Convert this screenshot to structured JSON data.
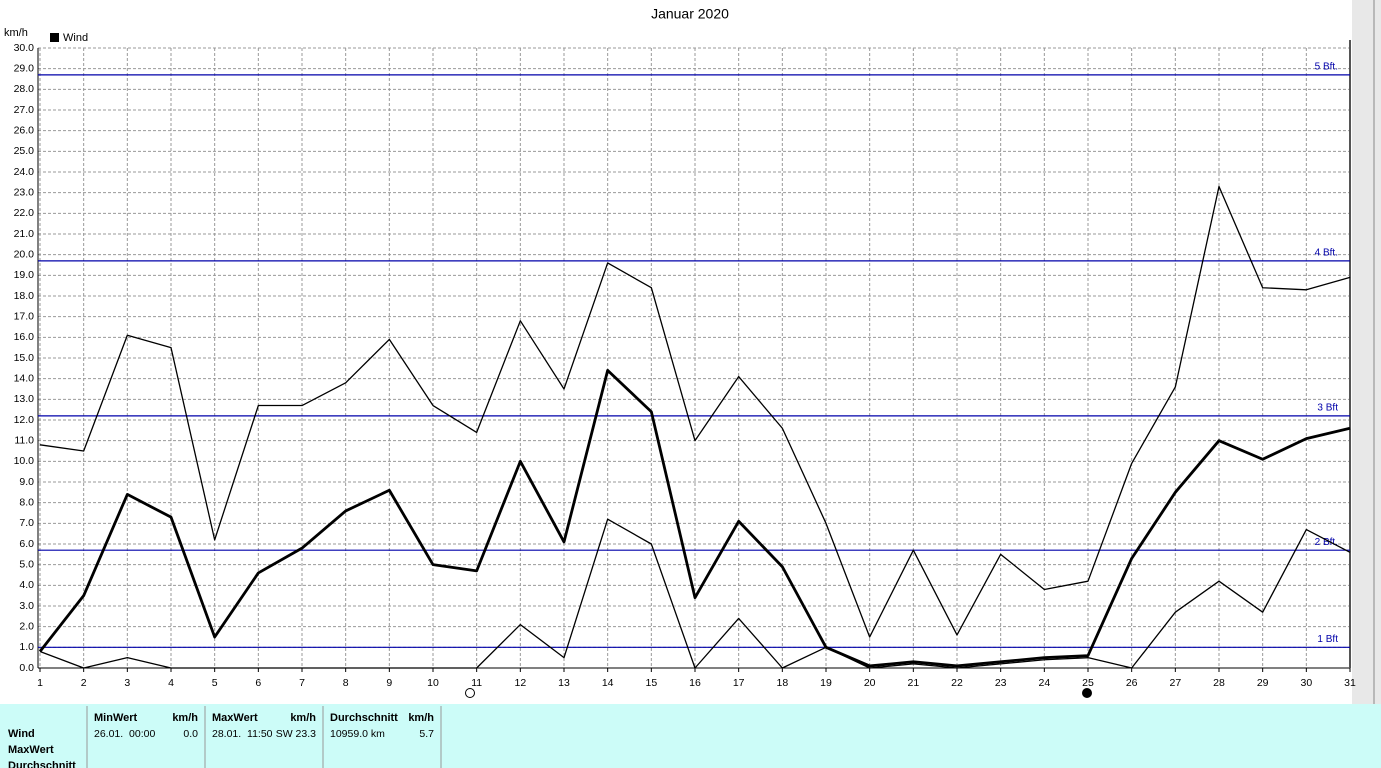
{
  "chart_data": {
    "type": "line",
    "title": "Januar 2020",
    "y_unit": "km/h",
    "legend": "Wind",
    "categories": [
      "1",
      "2",
      "3",
      "4",
      "5",
      "6",
      "7",
      "8",
      "9",
      "10",
      "11",
      "12",
      "13",
      "14",
      "15",
      "16",
      "17",
      "18",
      "19",
      "20",
      "21",
      "22",
      "23",
      "24",
      "25",
      "26",
      "27",
      "28",
      "29",
      "30",
      "31"
    ],
    "series": [
      {
        "color": "#000000",
        "width": 1.3,
        "values": [
          10.8,
          10.5,
          16.1,
          15.5,
          6.2,
          12.7,
          12.7,
          13.8,
          15.9,
          12.7,
          11.4,
          16.8,
          13.5,
          19.6,
          18.4,
          11.0,
          14.1,
          11.6,
          7.0,
          1.5,
          5.7,
          1.6,
          5.5,
          3.8,
          4.2,
          9.9,
          13.6,
          23.3,
          18.4,
          18.3,
          18.9
        ]
      },
      {
        "color": "#000000",
        "width": 2.8,
        "values": [
          0.8,
          3.5,
          8.4,
          7.3,
          1.5,
          4.6,
          5.8,
          7.6,
          8.6,
          5.0,
          4.7,
          10.0,
          6.1,
          14.4,
          12.4,
          3.4,
          7.1,
          4.9,
          1.0,
          0.1,
          0.3,
          0.1,
          0.3,
          0.5,
          0.6,
          5.3,
          8.5,
          11.0,
          10.1,
          11.1,
          11.6
        ]
      },
      {
        "color": "#000000",
        "width": 1.3,
        "values": [
          0.8,
          0.0,
          0.5,
          0.0,
          0.0,
          0.0,
          0.0,
          0.0,
          0.0,
          0.0,
          0.0,
          2.1,
          0.5,
          7.2,
          6.0,
          0.0,
          2.4,
          0.0,
          1.0,
          0.0,
          0.2,
          0.0,
          0.2,
          0.4,
          0.5,
          0.0,
          2.7,
          4.2,
          2.7,
          6.7,
          5.6
        ]
      }
    ],
    "reference_lines": [
      {
        "label": "1 Bft",
        "value": 1.0
      },
      {
        "label": "2 Bft.",
        "value": 5.7
      },
      {
        "label": "3 Bft",
        "value": 12.2
      },
      {
        "label": "4 Bft.",
        "value": 19.7
      },
      {
        "label": "5 Bft.",
        "value": 28.7
      }
    ],
    "ref_color": "#0000aa",
    "ylim": [
      0,
      30
    ],
    "yticks": [
      {
        "value": 0,
        "label": "0.0"
      },
      {
        "value": 1,
        "label": "1.0"
      },
      {
        "value": 2,
        "label": "2.0"
      },
      {
        "value": 3,
        "label": "3.0"
      },
      {
        "value": 4,
        "label": "4.0"
      },
      {
        "value": 5,
        "label": "5.0"
      },
      {
        "value": 6,
        "label": "6.0"
      },
      {
        "value": 7,
        "label": "7.0"
      },
      {
        "value": 8,
        "label": "8.0"
      },
      {
        "value": 9,
        "label": "9.0"
      },
      {
        "value": 10,
        "label": "10.0"
      },
      {
        "value": 11,
        "label": "11.0"
      },
      {
        "value": 12,
        "label": "12.0"
      },
      {
        "value": 13,
        "label": "13.0"
      },
      {
        "value": 14,
        "label": "14.0"
      },
      {
        "value": 15,
        "label": "15.0"
      },
      {
        "value": 16,
        "label": "16.0"
      },
      {
        "value": 17,
        "label": "17.0"
      },
      {
        "value": 18,
        "label": "18.0"
      },
      {
        "value": 19,
        "label": "19.0"
      },
      {
        "value": 20,
        "label": "20.0"
      },
      {
        "value": 21,
        "label": "21.0"
      },
      {
        "value": 22,
        "label": "22.0"
      },
      {
        "value": 23,
        "label": "23.0"
      },
      {
        "value": 24,
        "label": "24.0"
      },
      {
        "value": 25,
        "label": "25.0"
      },
      {
        "value": 26,
        "label": "26.0"
      },
      {
        "value": 27,
        "label": "27.0"
      },
      {
        "value": 28,
        "label": "28.0"
      },
      {
        "value": 29,
        "label": "29.0"
      },
      {
        "value": 30,
        "label": "30.0"
      }
    ],
    "grid": true
  },
  "table": {
    "groups": [
      {
        "name": "MinWert",
        "unit": "km/h"
      },
      {
        "name": "MaxWert",
        "unit": "km/h"
      },
      {
        "name": "Durchschnitt",
        "unit": "km/h"
      }
    ],
    "row_labels": [
      "Wind",
      "MaxWert",
      "Durchschnitt"
    ],
    "rows": [
      [
        "26.01.  00:00",
        "0.0",
        "28.01.  11:50",
        "SW 23.3",
        "10959.0 km",
        "5.7"
      ]
    ]
  }
}
